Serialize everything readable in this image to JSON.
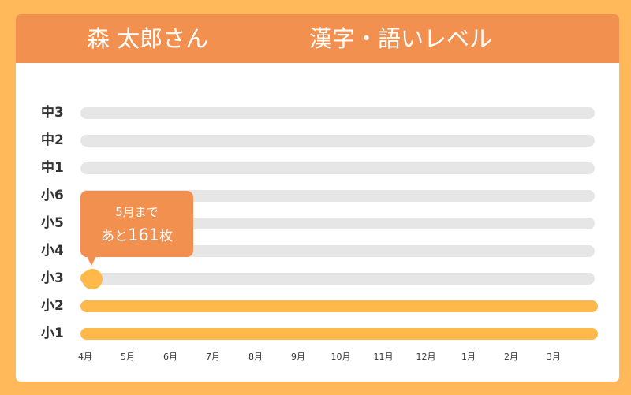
{
  "header": {
    "name": "森 太郎さん",
    "subject": "漢字・語いレベル"
  },
  "levels": [
    {
      "label": "中3",
      "status": "empty"
    },
    {
      "label": "中2",
      "status": "empty"
    },
    {
      "label": "中1",
      "status": "empty"
    },
    {
      "label": "小6",
      "status": "empty"
    },
    {
      "label": "小5",
      "status": "empty"
    },
    {
      "label": "小4",
      "status": "empty"
    },
    {
      "label": "小3",
      "status": "current"
    },
    {
      "label": "小2",
      "status": "complete"
    },
    {
      "label": "小1",
      "status": "complete"
    }
  ],
  "months": [
    "4月",
    "5月",
    "6月",
    "7月",
    "8月",
    "9月",
    "10月",
    "11月",
    "12月",
    "1月",
    "2月",
    "3月"
  ],
  "bubble": {
    "line1": "5月まで",
    "prefix": "あと",
    "count": "161",
    "unit": "枚"
  },
  "colors": {
    "background": "#ffb85a",
    "header": "#f29050",
    "progress": "#ffb84a",
    "track": "#e6e6e6"
  }
}
